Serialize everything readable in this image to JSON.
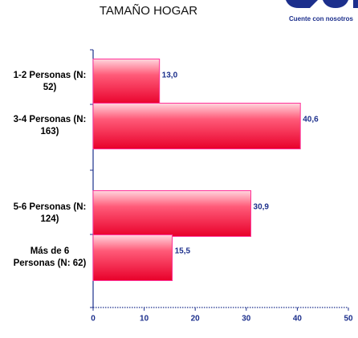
{
  "chart_data": {
    "type": "barh",
    "title": "TAMAÑO HOGAR",
    "logo_tagline": "Cuente con nosotros",
    "categories": [
      "1-2 Personas (N: 52)",
      "3-4 Personas (N: 163)",
      "5-6 Personas (N: 124)",
      "Más de 6 Personas (N: 62)"
    ],
    "values": [
      13.0,
      40.6,
      30.9,
      15.5
    ],
    "value_labels": [
      "13,0",
      "40,6",
      "30,9",
      "15,5"
    ],
    "color": "#ff0033",
    "xlim": [
      0,
      50
    ],
    "xticks": [
      0,
      10,
      20,
      30,
      40,
      50
    ]
  }
}
